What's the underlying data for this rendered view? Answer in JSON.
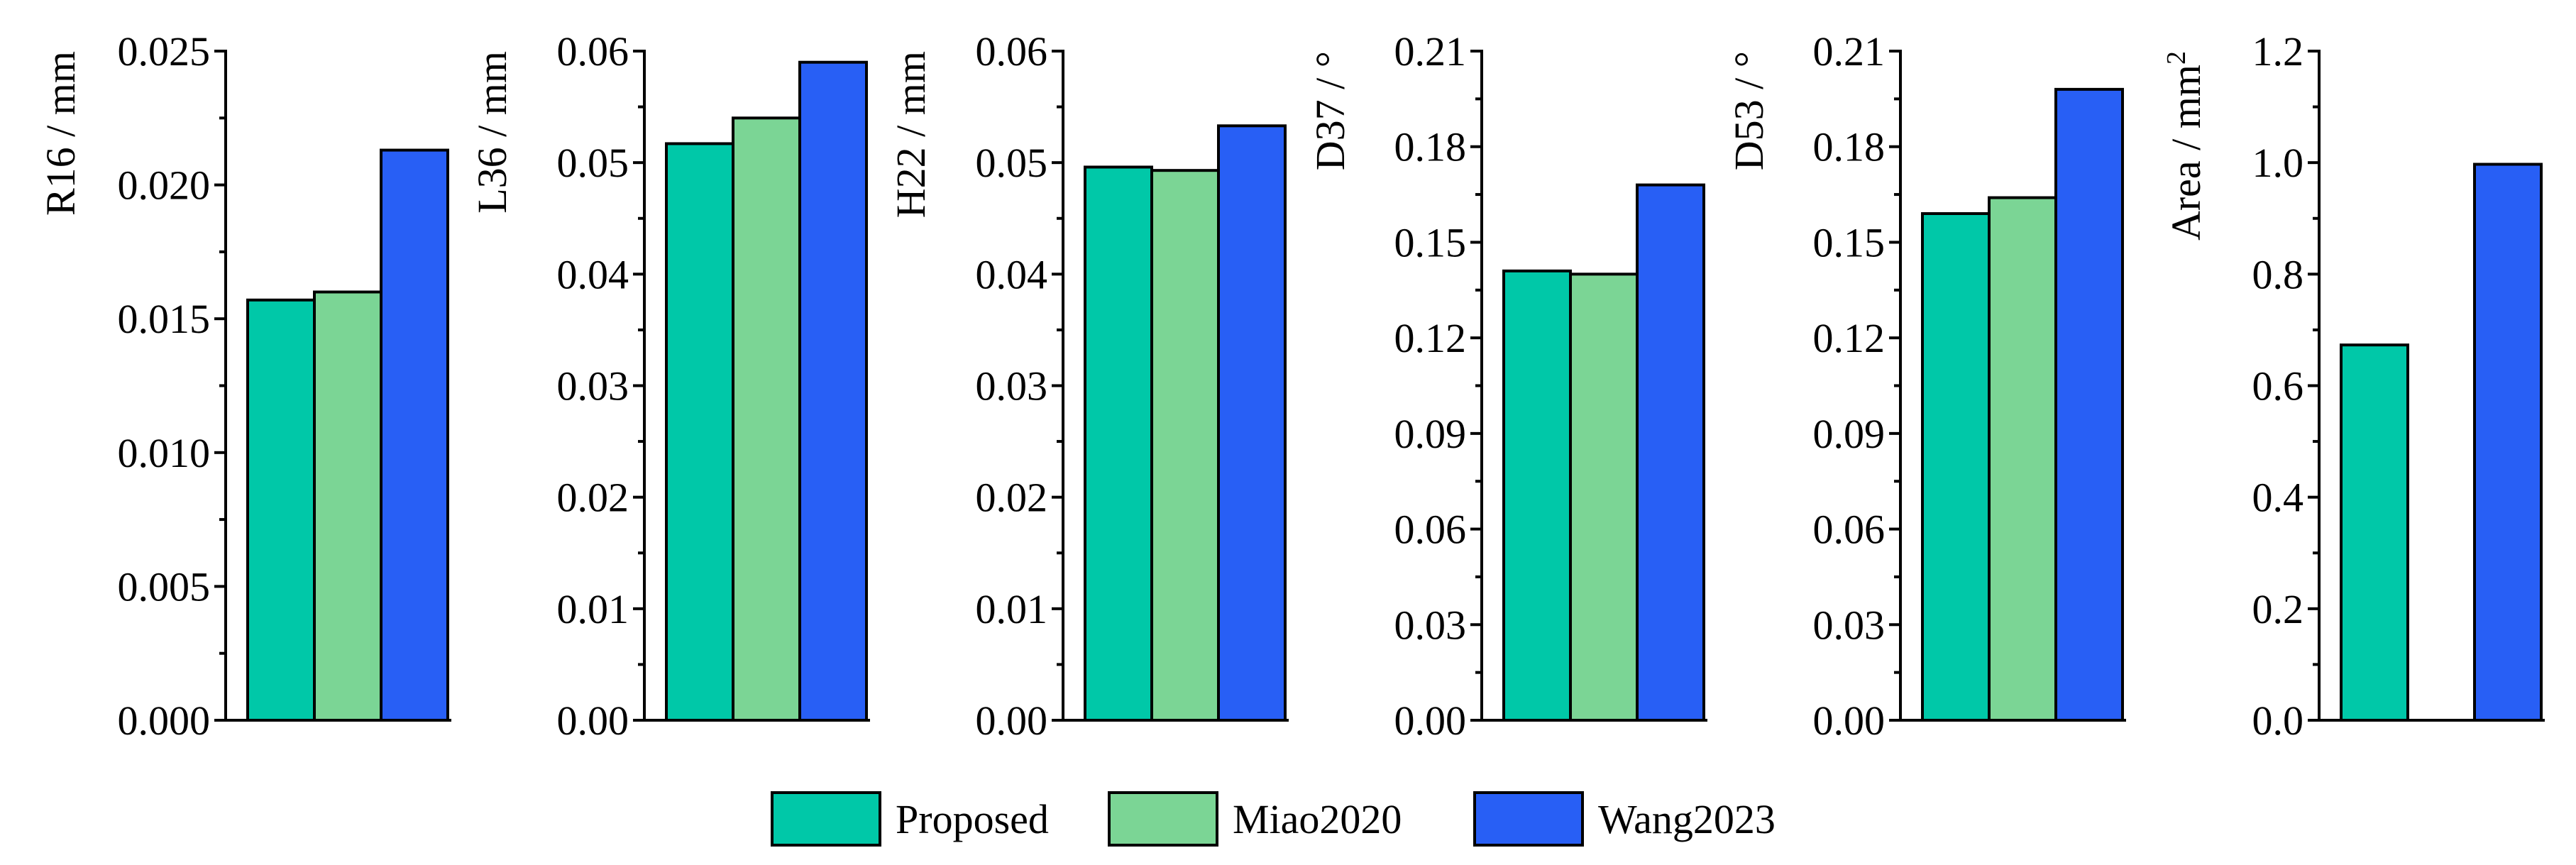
{
  "colors": {
    "Proposed": "#00c8a8",
    "Miao2020": "#7bd595",
    "Wang2023": "#285ff5"
  },
  "legend": [
    "Proposed",
    "Miao2020",
    "Wang2023"
  ],
  "chart_data": [
    {
      "type": "bar",
      "ylabel": "R16 / mm",
      "ylim": [
        0,
        0.025
      ],
      "yticks": [
        "0.000",
        "0.005",
        "0.010",
        "0.015",
        "0.020",
        "0.025"
      ],
      "series": [
        {
          "name": "Proposed",
          "value": 0.0157
        },
        {
          "name": "Miao2020",
          "value": 0.016
        },
        {
          "name": "Wang2023",
          "value": 0.0213
        }
      ]
    },
    {
      "type": "bar",
      "ylabel": "L36 / mm",
      "ylim": [
        0,
        0.06
      ],
      "yticks": [
        "0.00",
        "0.01",
        "0.02",
        "0.03",
        "0.04",
        "0.05",
        "0.06"
      ],
      "series": [
        {
          "name": "Proposed",
          "value": 0.0517
        },
        {
          "name": "Miao2020",
          "value": 0.054
        },
        {
          "name": "Wang2023",
          "value": 0.059
        }
      ]
    },
    {
      "type": "bar",
      "ylabel": "H22 / mm",
      "ylim": [
        0,
        0.06
      ],
      "yticks": [
        "0.00",
        "0.01",
        "0.02",
        "0.03",
        "0.04",
        "0.05",
        "0.06"
      ],
      "series": [
        {
          "name": "Proposed",
          "value": 0.0496
        },
        {
          "name": "Miao2020",
          "value": 0.0493
        },
        {
          "name": "Wang2023",
          "value": 0.0533
        }
      ]
    },
    {
      "type": "bar",
      "ylabel": "D37 / °",
      "ylim": [
        0,
        0.21
      ],
      "yticks": [
        "0.00",
        "0.03",
        "0.06",
        "0.09",
        "0.12",
        "0.15",
        "0.18",
        "0.21"
      ],
      "series": [
        {
          "name": "Proposed",
          "value": 0.141
        },
        {
          "name": "Miao2020",
          "value": 0.14
        },
        {
          "name": "Wang2023",
          "value": 0.168
        }
      ]
    },
    {
      "type": "bar",
      "ylabel": "D53 / °",
      "ylim": [
        0,
        0.21
      ],
      "yticks": [
        "0.00",
        "0.03",
        "0.06",
        "0.09",
        "0.12",
        "0.15",
        "0.18",
        "0.21"
      ],
      "series": [
        {
          "name": "Proposed",
          "value": 0.159
        },
        {
          "name": "Miao2020",
          "value": 0.164
        },
        {
          "name": "Wang2023",
          "value": 0.198
        }
      ]
    },
    {
      "type": "bar",
      "ylabel": "Area / mm",
      "ylabel_sup": "2",
      "ylim": [
        0,
        1.2
      ],
      "yticks": [
        "0.0",
        "0.2",
        "0.4",
        "0.6",
        "0.8",
        "1.0",
        "1.2"
      ],
      "series": [
        {
          "name": "Proposed",
          "value": 0.673
        },
        {
          "name": "Miao2020",
          "value": null
        },
        {
          "name": "Wang2023",
          "value": 0.997
        }
      ]
    }
  ]
}
